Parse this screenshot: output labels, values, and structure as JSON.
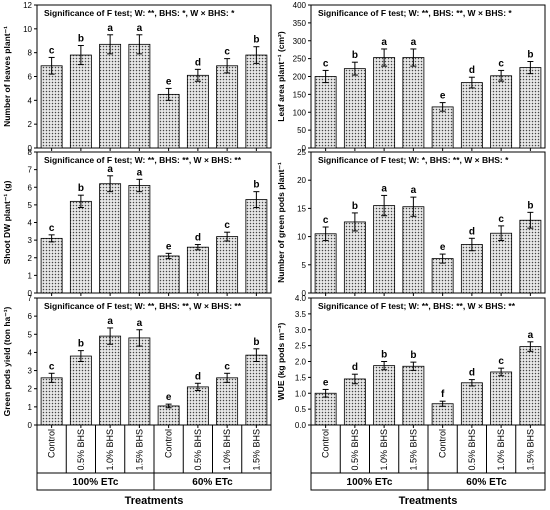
{
  "chart_data": [
    {
      "type": "bar",
      "annotation": "Significance of F test; W: **, BHS: *, W × BHS: *",
      "ylabel": "Number of leaves plant⁻¹",
      "ylim": [
        0,
        12
      ],
      "yticks": [
        0,
        2,
        4,
        6,
        8,
        10,
        12
      ],
      "categories": [
        "Control",
        "0.5% BHS",
        "1.0% BHS",
        "1.5% BHS",
        "Control",
        "0.5% BHS",
        "1.0% BHS",
        "1.5% BHS"
      ],
      "groups": [
        "100% ETc",
        "60% ETc"
      ],
      "values": [
        6.9,
        7.8,
        8.7,
        8.7,
        4.5,
        6.1,
        6.9,
        7.8
      ],
      "errors": [
        0.7,
        0.8,
        0.8,
        0.8,
        0.5,
        0.5,
        0.6,
        0.7
      ],
      "letters": [
        "c",
        "b",
        "a",
        "a",
        "e",
        "d",
        "c",
        "b"
      ]
    },
    {
      "type": "bar",
      "annotation": "Significance of F test; W: **, BHS: **, W × BHS: *",
      "ylabel": "Leaf area plant⁻¹ (cm²)",
      "ylim": [
        0,
        400
      ],
      "yticks": [
        0,
        50,
        100,
        150,
        200,
        250,
        300,
        350,
        400
      ],
      "categories": [
        "Control",
        "0.5% BHS",
        "1.0% BHS",
        "1.5% BHS",
        "Control",
        "0.5% BHS",
        "1.0% BHS",
        "1.5% BHS"
      ],
      "groups": [
        "100% ETc",
        "60% ETc"
      ],
      "values": [
        200,
        222,
        253,
        253,
        115,
        183,
        202,
        225
      ],
      "errors": [
        17,
        18,
        24,
        24,
        12,
        15,
        15,
        17
      ],
      "letters": [
        "c",
        "b",
        "a",
        "a",
        "e",
        "d",
        "c",
        "b"
      ]
    },
    {
      "type": "bar",
      "annotation": "Significance of F test; W: **, BHS: **, W × BHS: **",
      "ylabel": "Shoot DW plant⁻¹ (g)",
      "ylim": [
        0,
        8
      ],
      "yticks": [
        0,
        1,
        2,
        3,
        4,
        5,
        6,
        7,
        8
      ],
      "categories": [
        "Control",
        "0.5% BHS",
        "1.0% BHS",
        "1.5% BHS",
        "Control",
        "0.5% BHS",
        "1.0% BHS",
        "1.5% BHS"
      ],
      "groups": [
        "100% ETc",
        "60% ETc"
      ],
      "values": [
        3.1,
        5.2,
        6.2,
        6.1,
        2.1,
        2.6,
        3.2,
        5.3
      ],
      "errors": [
        0.2,
        0.35,
        0.45,
        0.35,
        0.15,
        0.15,
        0.25,
        0.45
      ],
      "letters": [
        "c",
        "b",
        "a",
        "a",
        "e",
        "d",
        "c",
        "b"
      ]
    },
    {
      "type": "bar",
      "annotation": "Significance of F test; W: *, BHS: **, W × BHS: *",
      "ylabel": "Number of green pods plant⁻¹",
      "ylim": [
        0,
        25
      ],
      "yticks": [
        0,
        5,
        10,
        15,
        20,
        25
      ],
      "categories": [
        "Control",
        "0.5% BHS",
        "1.0% BHS",
        "1.5% BHS",
        "Control",
        "0.5% BHS",
        "1.0% BHS",
        "1.5% BHS"
      ],
      "groups": [
        "100% ETc",
        "60% ETc"
      ],
      "values": [
        10.5,
        12.6,
        15.5,
        15.3,
        6.1,
        8.6,
        10.6,
        12.9
      ],
      "errors": [
        1.2,
        1.6,
        1.8,
        1.7,
        0.8,
        1.1,
        1.3,
        1.4
      ],
      "letters": [
        "c",
        "b",
        "a",
        "a",
        "e",
        "d",
        "c",
        "b"
      ]
    },
    {
      "type": "bar",
      "annotation": "Significance of F test; W: **, BHS: **, W × BHS: **",
      "ylabel": "Green pods yield (ton ha⁻¹)",
      "ylim": [
        0,
        7
      ],
      "yticks": [
        0,
        1,
        2,
        3,
        4,
        5,
        6,
        7
      ],
      "categories": [
        "Control",
        "0.5% BHS",
        "1.0% BHS",
        "1.5% BHS",
        "Control",
        "0.5% BHS",
        "1.0% BHS",
        "1.5% BHS"
      ],
      "groups": [
        "100% ETc",
        "60% ETc"
      ],
      "values": [
        2.6,
        3.8,
        4.9,
        4.8,
        1.05,
        2.1,
        2.6,
        3.85
      ],
      "errors": [
        0.25,
        0.3,
        0.45,
        0.45,
        0.1,
        0.2,
        0.25,
        0.35
      ],
      "letters": [
        "c",
        "b",
        "a",
        "a",
        "e",
        "d",
        "c",
        "b"
      ]
    },
    {
      "type": "bar",
      "annotation": "Significance of F test; W: **, BHS: **, W × BHS: **",
      "ylabel": "WUE (kg pods m⁻³)",
      "ylim": [
        0,
        4
      ],
      "yticks": [
        0,
        0.5,
        1.0,
        1.5,
        2.0,
        2.5,
        3.0,
        3.5,
        4.0
      ],
      "categories": [
        "Control",
        "0.5% BHS",
        "1.0% BHS",
        "1.5% BHS",
        "Control",
        "0.5% BHS",
        "1.0% BHS",
        "1.5% BHS"
      ],
      "groups": [
        "100% ETc",
        "60% ETc"
      ],
      "values": [
        1.0,
        1.45,
        1.87,
        1.85,
        0.67,
        1.33,
        1.67,
        2.47
      ],
      "errors": [
        0.12,
        0.15,
        0.13,
        0.13,
        0.08,
        0.1,
        0.12,
        0.15
      ],
      "letters": [
        "e",
        "d",
        "b",
        "b",
        "f",
        "d",
        "c",
        "a"
      ]
    }
  ],
  "xlabel": "Treatments"
}
